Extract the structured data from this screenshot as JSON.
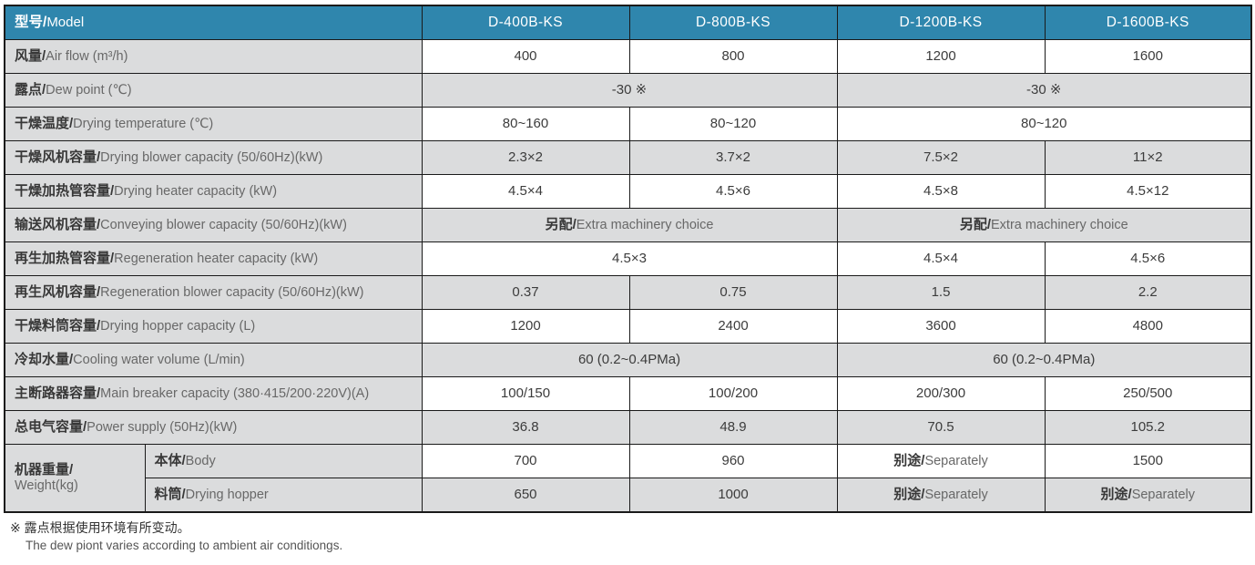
{
  "accent_color": "#2f86ad",
  "shade_color": "#dbdcdd",
  "border_color": "#1a1a1a",
  "header": {
    "label_zh": "型号/",
    "label_en": "Model",
    "models": [
      "D-400B-KS",
      "D-800B-KS",
      "D-1200B-KS",
      "D-1600B-KS"
    ]
  },
  "rows": [
    {
      "label_zh": "风量/",
      "label_en": "Air flow (m³/h)",
      "shade": false,
      "cells": [
        {
          "v": "400"
        },
        {
          "v": "800"
        },
        {
          "v": "1200"
        },
        {
          "v": "1600"
        }
      ]
    },
    {
      "label_zh": "露点/",
      "label_en": "Dew point (℃)",
      "shade": true,
      "cells": [
        {
          "v": "-30 ※",
          "span": 2
        },
        {
          "v": "-30 ※",
          "span": 2
        }
      ]
    },
    {
      "label_zh": "干燥温度/",
      "label_en": "Drying temperature (℃)",
      "shade": false,
      "cells": [
        {
          "v": "80~160"
        },
        {
          "v": "80~120"
        },
        {
          "v": "80~120",
          "span": 2
        }
      ]
    },
    {
      "label_zh": "干燥风机容量/",
      "label_en": "Drying blower capacity (50/60Hz)(kW)",
      "shade": true,
      "cells": [
        {
          "v": "2.3×2"
        },
        {
          "v": "3.7×2"
        },
        {
          "v": "7.5×2"
        },
        {
          "v": "11×2"
        }
      ]
    },
    {
      "label_zh": "干燥加热管容量/",
      "label_en": "Drying heater capacity (kW)",
      "shade": false,
      "cells": [
        {
          "v": "4.5×4"
        },
        {
          "v": "4.5×6"
        },
        {
          "v": "4.5×8"
        },
        {
          "v": "4.5×12"
        }
      ]
    },
    {
      "label_zh": "输送风机容量/",
      "label_en": "Conveying blower capacity (50/60Hz)(kW)",
      "shade": true,
      "cells": [
        {
          "zh": "另配/",
          "en": "Extra machinery choice",
          "span": 2
        },
        {
          "zh": "另配/",
          "en": "Extra machinery choice",
          "span": 2
        }
      ]
    },
    {
      "label_zh": "再生加热管容量/",
      "label_en": "Regeneration heater capacity (kW)",
      "shade": false,
      "cells": [
        {
          "v": "4.5×3",
          "span": 2
        },
        {
          "v": "4.5×4"
        },
        {
          "v": "4.5×6"
        }
      ]
    },
    {
      "label_zh": "再生风机容量/",
      "label_en": "Regeneration blower capacity (50/60Hz)(kW)",
      "shade": true,
      "cells": [
        {
          "v": "0.37"
        },
        {
          "v": "0.75"
        },
        {
          "v": "1.5"
        },
        {
          "v": "2.2"
        }
      ]
    },
    {
      "label_zh": "干燥料筒容量/",
      "label_en": "Drying hopper capacity (L)",
      "shade": false,
      "cells": [
        {
          "v": "1200"
        },
        {
          "v": "2400"
        },
        {
          "v": "3600"
        },
        {
          "v": "4800"
        }
      ]
    },
    {
      "label_zh": "冷却水量/",
      "label_en": "Cooling water volume (L/min)",
      "shade": true,
      "cells": [
        {
          "v": "60 (0.2~0.4PMa)",
          "span": 2
        },
        {
          "v": "60 (0.2~0.4PMa)",
          "span": 2
        }
      ]
    },
    {
      "label_zh": "主断路器容量/",
      "label_en": "Main breaker capacity (380·415/200·220V)(A)",
      "shade": false,
      "cells": [
        {
          "v": "100/150"
        },
        {
          "v": "100/200"
        },
        {
          "v": "200/300"
        },
        {
          "v": "250/500"
        }
      ]
    },
    {
      "label_zh": "总电气容量/",
      "label_en": "Power supply (50Hz)(kW)",
      "shade": true,
      "cells": [
        {
          "v": "36.8"
        },
        {
          "v": "48.9"
        },
        {
          "v": "70.5"
        },
        {
          "v": "105.2"
        }
      ]
    },
    {
      "group": {
        "zh": "机器重量/",
        "en": "Weight(kg)",
        "rowspan": 2
      },
      "sub_zh": "本体/",
      "sub_en": "Body",
      "shade": false,
      "cells": [
        {
          "v": "700"
        },
        {
          "v": "960"
        },
        {
          "zh": "别途/",
          "en": "Separately"
        },
        {
          "v": "1500"
        }
      ]
    },
    {
      "sub_zh": "料筒/",
      "sub_en": "Drying hopper",
      "shade": true,
      "cells": [
        {
          "v": "650"
        },
        {
          "v": "1000"
        },
        {
          "zh": "别途/",
          "en": "Separately"
        },
        {
          "zh": "别途/",
          "en": "Separately"
        }
      ]
    }
  ],
  "footnote": {
    "line1": "※ 露点根据使用环境有所变动。",
    "line2": "The dew piont varies according to ambient air conditiongs."
  }
}
